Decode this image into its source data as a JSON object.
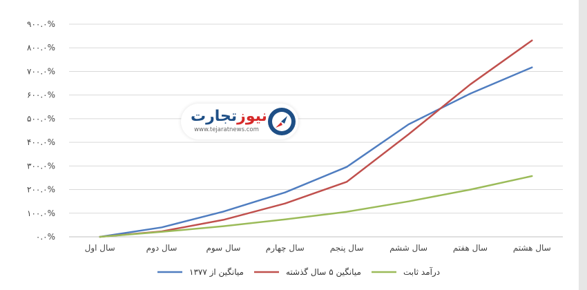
{
  "chart_data": {
    "type": "line",
    "categories": [
      "سال اول",
      "سال دوم",
      "سال سوم",
      "سال چهارم",
      "سال پنجم",
      "سال ششم",
      "سال هفتم",
      "سال هشتم"
    ],
    "y_tick_labels": [
      "۰.۰%",
      "۱۰۰.۰%",
      "۲۰۰.۰%",
      "۳۰۰.۰%",
      "۴۰۰.۰%",
      "۵۰۰.۰%",
      "۶۰۰.۰%",
      "۷۰۰.۰%",
      "۸۰۰.۰%",
      "۹۰۰.۰%"
    ],
    "ylim": [
      0,
      900
    ],
    "grid": true,
    "legend_position": "bottom",
    "series": [
      {
        "name": "میانگین از ۱۳۷۷",
        "color": "#4f7dc0",
        "values": [
          0,
          40,
          107,
          188,
          296,
          476,
          606,
          717
        ]
      },
      {
        "name": "میانگین ۵ سال گذشته",
        "color": "#c0504d",
        "values": [
          0,
          23,
          72,
          141,
          233,
          434,
          645,
          831
        ]
      },
      {
        "name": "درآمد ثابت",
        "color": "#9bbb59",
        "values": [
          0,
          21,
          45,
          74,
          106,
          150,
          200,
          257
        ]
      }
    ]
  },
  "watermark": {
    "name_part1": "تجارت",
    "name_part2": "نیوز",
    "url": "www.tejaratnews.com",
    "icon": "tejaratnews-logo-icon"
  }
}
